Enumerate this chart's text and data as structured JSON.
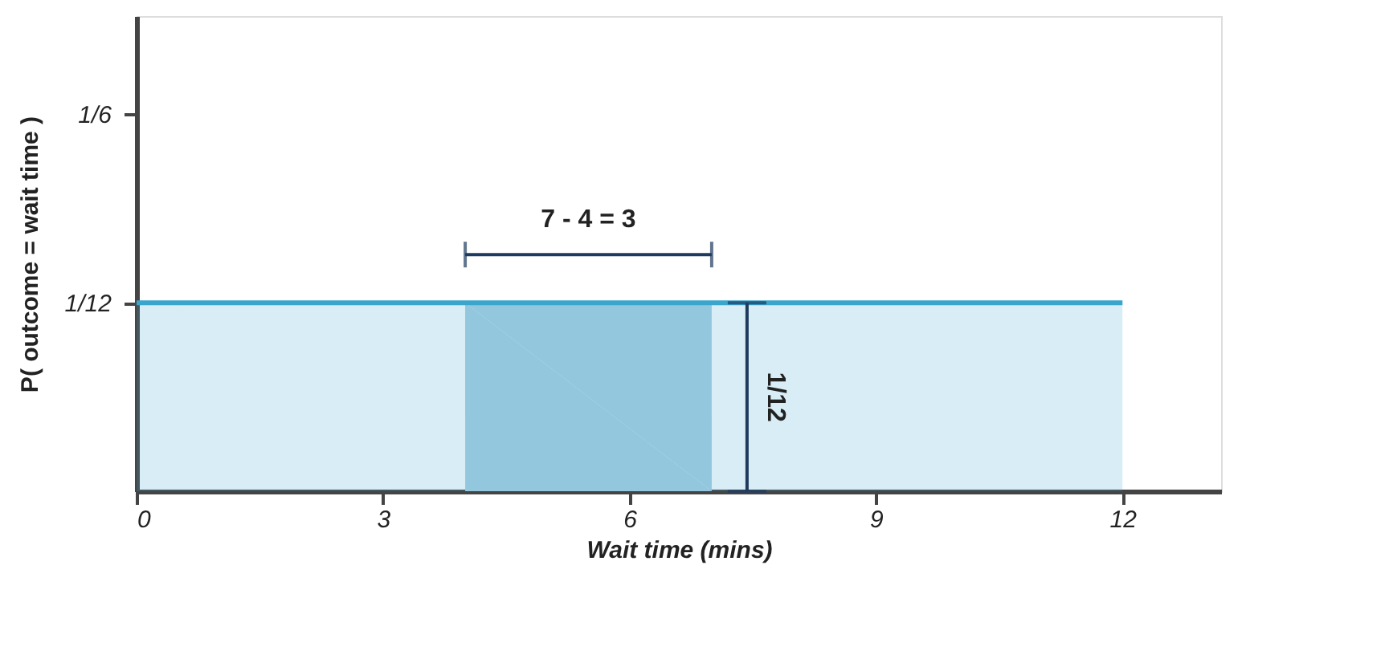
{
  "chart_data": {
    "type": "area",
    "xlabel": "Wait time (mins)",
    "ylabel": "P( outcome  = wait time )",
    "xlim": [
      0,
      13.2
    ],
    "ylim": [
      0,
      0.21
    ],
    "xticks": [
      0,
      3,
      6,
      9,
      12
    ],
    "yticks": [
      {
        "value": 0.0833,
        "label": "1/12"
      },
      {
        "value": 0.1667,
        "label": "1/6"
      }
    ],
    "series": [
      {
        "x": [
          0,
          12
        ],
        "values": [
          0.0833,
          0.0833
        ],
        "color": "#3aa6cc"
      },
      {
        "x": [
          4,
          7
        ],
        "values": [
          0.0833,
          0.0833
        ],
        "color": "#92c7dd"
      }
    ],
    "annotations": [
      "7 - 4 = 3",
      "1/12"
    ],
    "grid": false
  }
}
